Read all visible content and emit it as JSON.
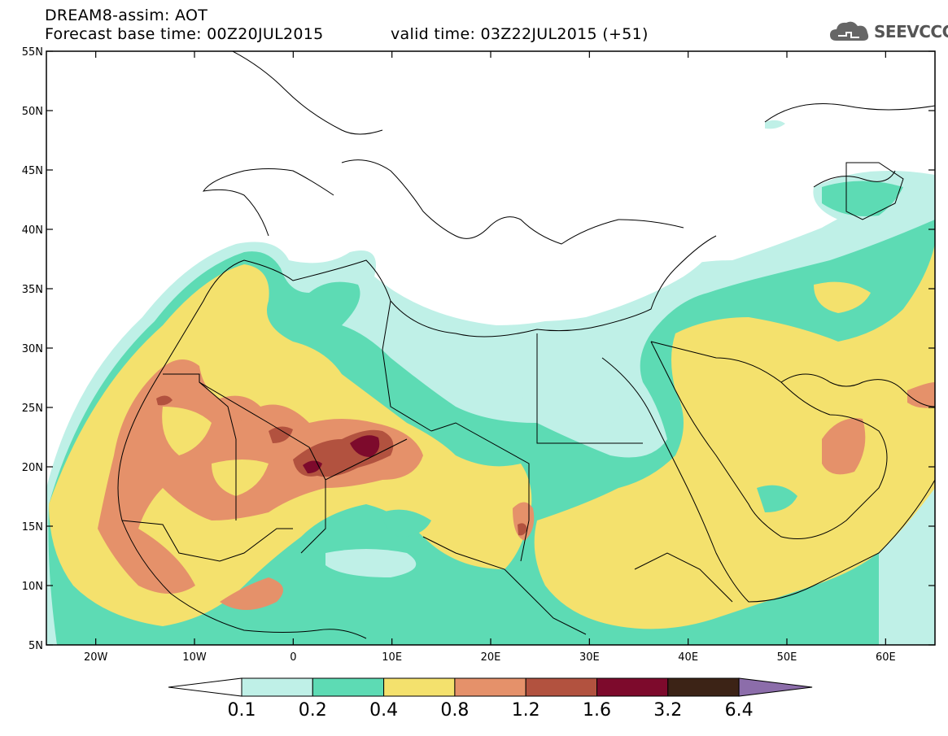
{
  "header": {
    "title": "DREAM8-assim: AOT",
    "base_time": "Forecast base time: 00Z20JUL2015",
    "valid_time": "valid time: 03Z22JUL2015 (+51)"
  },
  "logo": {
    "text": "SEEVCCC",
    "icon": "cloud-icon"
  },
  "map": {
    "lat_labels": [
      "55N",
      "50N",
      "45N",
      "40N",
      "35N",
      "30N",
      "25N",
      "20N",
      "15N",
      "10N",
      "5N"
    ],
    "lon_labels": [
      "20W",
      "10W",
      "0",
      "10E",
      "20E",
      "30E",
      "40E",
      "50E",
      "60E"
    ],
    "lon_range": [
      -25,
      65
    ],
    "lat_range": [
      5,
      55
    ],
    "variable": "AOT"
  },
  "legend": {
    "labels": [
      "0.1",
      "0.2",
      "0.4",
      "0.8",
      "1.2",
      "1.6",
      "3.2",
      "6.4"
    ],
    "colors": [
      "#ffffff",
      "#bff0e7",
      "#5ddbb4",
      "#f4e16d",
      "#e5916a",
      "#b2523f",
      "#7d0a2c",
      "#3c2316",
      "#8c6daa"
    ]
  }
}
